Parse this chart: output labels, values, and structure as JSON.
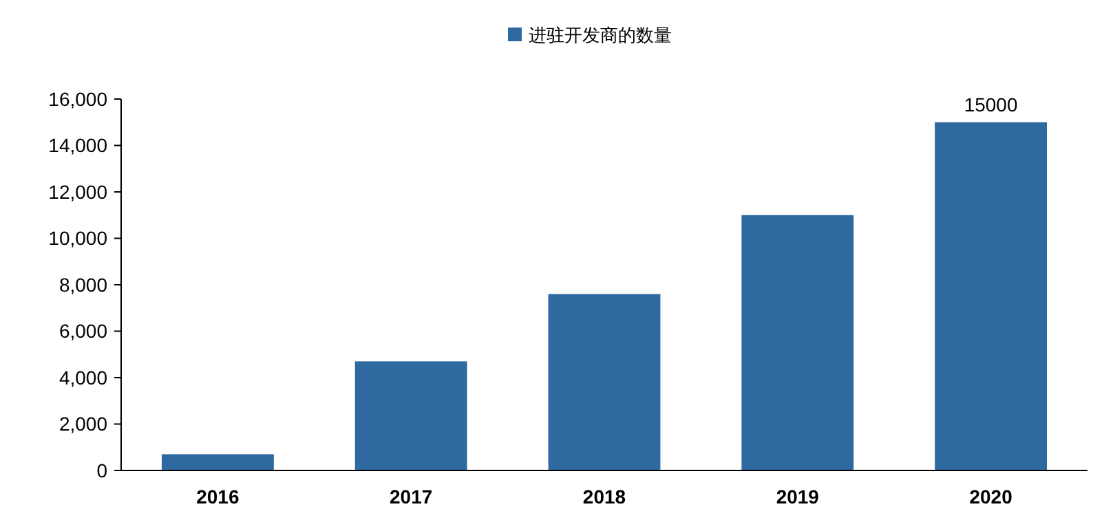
{
  "chart_data": {
    "type": "bar",
    "categories": [
      "2016",
      "2017",
      "2018",
      "2019",
      "2020"
    ],
    "series": [
      {
        "name": "进驻开发商的数量",
        "color": "#2e6aa0",
        "values": [
          700,
          4700,
          7600,
          11000,
          15000
        ],
        "value_labels": [
          null,
          null,
          null,
          null,
          "15000"
        ]
      }
    ],
    "ylim": [
      0,
      16000
    ],
    "yticks": [
      {
        "value": 0,
        "label": "0"
      },
      {
        "value": 2000,
        "label": "2,000"
      },
      {
        "value": 4000,
        "label": "4,000"
      },
      {
        "value": 6000,
        "label": "6,000"
      },
      {
        "value": 8000,
        "label": "8,000"
      },
      {
        "value": 10000,
        "label": "10,000"
      },
      {
        "value": 12000,
        "label": "12,000"
      },
      {
        "value": 14000,
        "label": "14,000"
      },
      {
        "value": 16000,
        "label": "16,000"
      }
    ],
    "grid": false,
    "legend": "top"
  }
}
